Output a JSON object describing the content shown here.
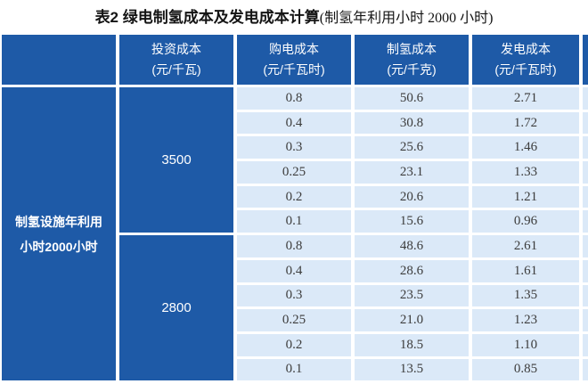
{
  "title": {
    "main": "表2  绿电制氢成本及发电成本计算",
    "paren": "(制氢年利用小时 2000 小时)"
  },
  "colors": {
    "header_blue": "#1e5aa7",
    "cell_light_blue": "#dbe9f8",
    "number_text": "#3c3c3c",
    "header_text": "#ffffff"
  },
  "table": {
    "row_header": {
      "line1": "制氢设施年利用",
      "line2": "小时2000小时"
    },
    "columns": [
      {
        "label": "投资成本",
        "unit": "(元/千瓦)"
      },
      {
        "label": "购电成本",
        "unit": "(元/千瓦时)"
      },
      {
        "label": "制氢成本",
        "unit": "(元/千克)"
      },
      {
        "label": "发电成本",
        "unit": "(元/千瓦时)"
      }
    ],
    "groups": [
      {
        "investment": "3500",
        "rows": [
          [
            "0.8",
            "50.6",
            "2.71"
          ],
          [
            "0.4",
            "30.8",
            "1.72"
          ],
          [
            "0.3",
            "25.6",
            "1.46"
          ],
          [
            "0.25",
            "23.1",
            "1.33"
          ],
          [
            "0.2",
            "20.6",
            "1.21"
          ],
          [
            "0.1",
            "15.6",
            "0.96"
          ]
        ]
      },
      {
        "investment": "2800",
        "rows": [
          [
            "0.8",
            "48.6",
            "2.61"
          ],
          [
            "0.4",
            "28.6",
            "1.61"
          ],
          [
            "0.3",
            "23.5",
            "1.35"
          ],
          [
            "0.25",
            "21.0",
            "1.23"
          ],
          [
            "0.2",
            "18.5",
            "1.10"
          ],
          [
            "0.1",
            "13.5",
            "0.85"
          ]
        ]
      }
    ]
  }
}
